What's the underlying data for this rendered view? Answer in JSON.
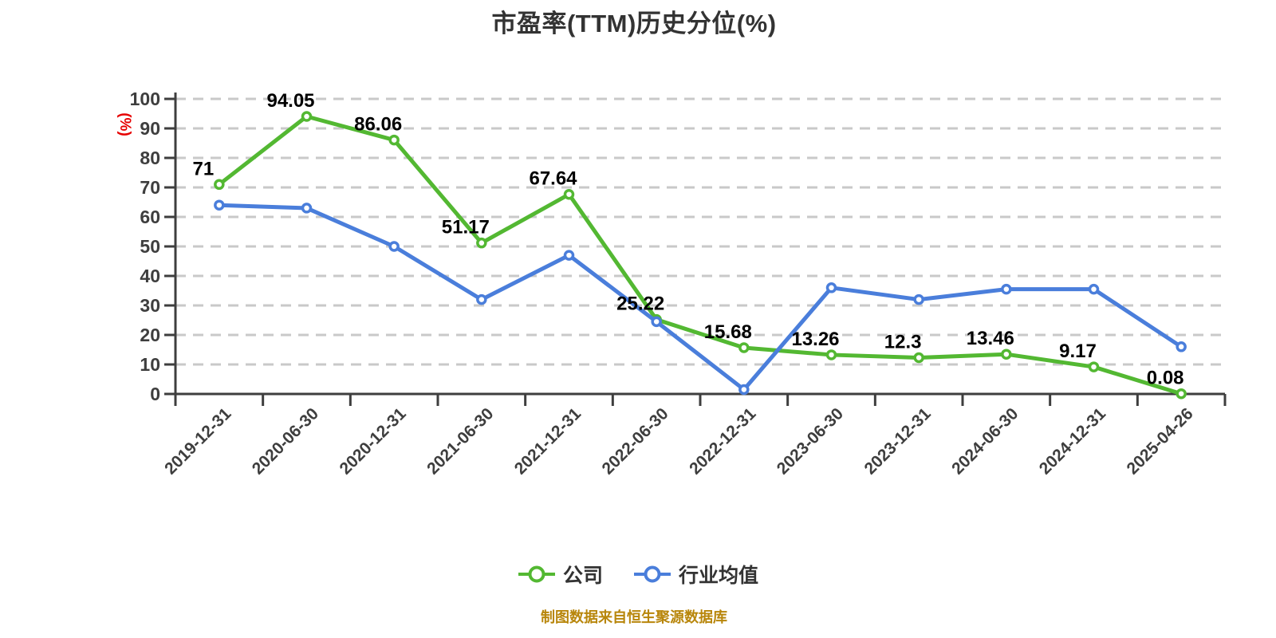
{
  "title": "市盈率(TTM)历史分位(%)",
  "y_axis_name": "(%)",
  "footer": "制图数据来自恒生聚源数据库",
  "colors": {
    "title": "#333333",
    "axis": "#3e3e3e",
    "grid": "#c9c9c9",
    "data_label": "#000000",
    "y_axis_name": "#e60000",
    "footer": "#b8860b",
    "company": "#53b832",
    "industry": "#4a7edb",
    "marker_fill": "#ffffff"
  },
  "legend": {
    "items": [
      {
        "label": "公司"
      },
      {
        "label": "行业均值"
      }
    ]
  },
  "chart_data": {
    "type": "line",
    "title": "市盈率(TTM)历史分位(%)",
    "xlabel": "",
    "ylabel": "(%)",
    "ylim": [
      0,
      100
    ],
    "y_tick_interval": 10,
    "y_ticks": [
      0,
      10,
      20,
      30,
      40,
      50,
      60,
      70,
      80,
      90,
      100
    ],
    "grid": "horizontal-dashed",
    "legend_position": "bottom",
    "categories": [
      "2019-12-31",
      "2020-06-30",
      "2020-12-31",
      "2021-06-30",
      "2021-12-31",
      "2022-06-30",
      "2022-12-31",
      "2023-06-30",
      "2023-12-31",
      "2024-06-30",
      "2024-12-31",
      "2025-04-26"
    ],
    "series": [
      {
        "name": "公司",
        "color": "#53b832",
        "values": [
          71,
          94.05,
          86.06,
          51.17,
          67.64,
          25.22,
          15.68,
          13.26,
          12.3,
          13.46,
          9.17,
          0.08
        ],
        "labels": [
          "71",
          "94.05",
          "86.06",
          "51.17",
          "67.64",
          "25.22",
          "15.68",
          "13.26",
          "12.3",
          "13.46",
          "9.17",
          "0.08"
        ],
        "show_labels": true
      },
      {
        "name": "行业均值",
        "color": "#4a7edb",
        "values": [
          64,
          63,
          50,
          32,
          47,
          24.5,
          1.5,
          36,
          32,
          35.5,
          35.5,
          16
        ],
        "labels": [],
        "show_labels": false
      }
    ]
  }
}
